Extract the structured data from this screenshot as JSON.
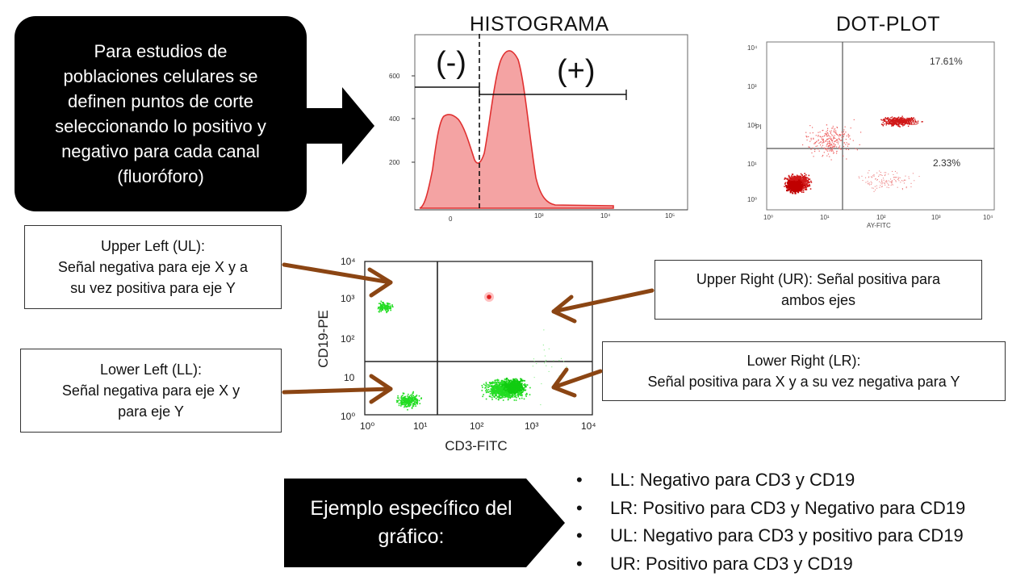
{
  "callout": {
    "lines": [
      "Para estudios de",
      "poblaciones celulares se",
      "definen puntos de corte",
      "seleccionando lo positivo y",
      "negativo para cada canal",
      "(fluoróforo)"
    ]
  },
  "histogram": {
    "title": "HISTOGRAMA",
    "neg_label": "(-)",
    "pos_label": "(+)",
    "y_ticks": [
      "600",
      "400",
      "200"
    ],
    "x_ticks": [
      "0",
      "10³",
      "10⁴",
      "10⁵"
    ],
    "fill_color": "#f4a3a3",
    "line_color": "#e03030"
  },
  "dotplot_top": {
    "title": "DOT-PLOT",
    "ur_pct": "17.61%",
    "lr_pct": "2.33%",
    "y_ticks": [
      "10⁴",
      "10³",
      "10²",
      "10¹",
      "10⁰"
    ],
    "x_ticks": [
      "10⁰",
      "10¹",
      "10²",
      "10³",
      "10⁴"
    ],
    "ylabel": "PI",
    "xlabel": "AY-FITC",
    "dot_color": "#d01818"
  },
  "dotplot_main": {
    "ylabel": "CD19-PE",
    "xlabel": "CD3-FITC",
    "y_ticks": [
      "10⁴",
      "10³",
      "10²",
      "10",
      "10⁰"
    ],
    "x_ticks": [
      "10⁰",
      "10¹",
      "10²",
      "10³",
      "10⁴"
    ],
    "dot_color": "#22dd22"
  },
  "quadrants": {
    "ul": {
      "line1": "Upper Left (UL):",
      "line2": "Señal negativa para eje X y a",
      "line3": "su vez positiva para eje Y"
    },
    "ur": {
      "line1": "Upper Right (UR): Señal positiva para",
      "line2": "ambos ejes"
    },
    "ll": {
      "line1": "Lower Left (LL):",
      "line2": "Señal negativa para eje X y",
      "line3": "para eje Y"
    },
    "lr": {
      "line1": "Lower Right (LR):",
      "line2": "Señal positiva para X y a su vez negativa para Y"
    }
  },
  "arrow_color": "#8b4513",
  "example": {
    "line1": "Ejemplo específico del",
    "line2": "gráfico:"
  },
  "bullets": [
    "LL: Negativo para CD3 y CD19",
    "LR: Positivo para CD3 y Negativo para CD19",
    "UL: Negativo para CD3 y positivo para CD19",
    "UR: Positivo para CD3 y CD19"
  ]
}
